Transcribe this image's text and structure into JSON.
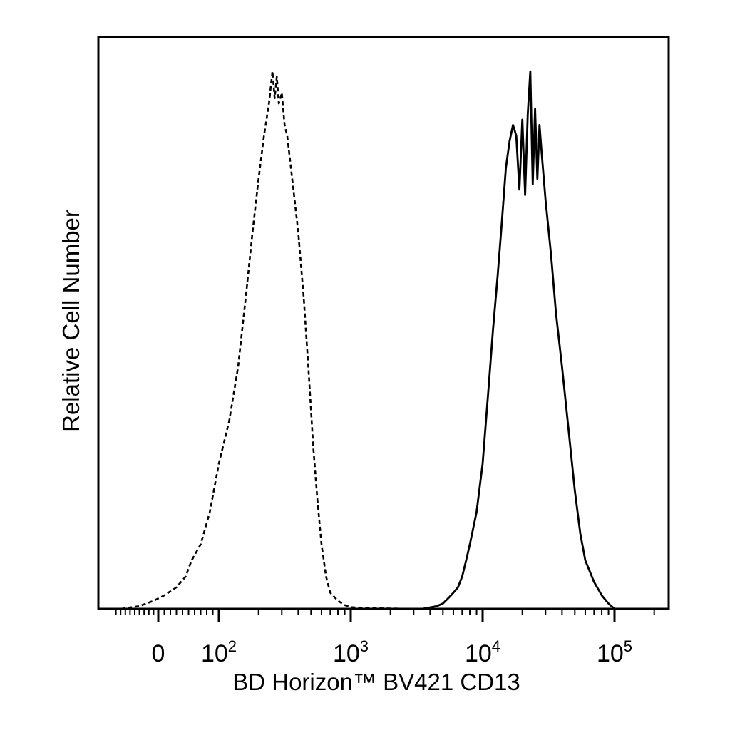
{
  "chart_data": {
    "type": "line",
    "xlabel": "BD Horizon™ BV421 CD13",
    "ylabel": "Relative Cell Number",
    "x_scale": "biexponential",
    "x_range": [
      -100,
      250000
    ],
    "y_range": [
      0,
      100
    ],
    "grid": false,
    "legend": "none",
    "x_ticks": [
      {
        "value": 0,
        "base": "0",
        "exp": ""
      },
      {
        "value": 100,
        "base": "10",
        "exp": "2"
      },
      {
        "value": 1000,
        "base": "10",
        "exp": "3"
      },
      {
        "value": 10000,
        "base": "10",
        "exp": "4"
      },
      {
        "value": 100000,
        "base": "10",
        "exp": "5"
      }
    ],
    "series": [
      {
        "style": "dashed",
        "points": [
          [
            -80,
            0
          ],
          [
            -40,
            0.5
          ],
          [
            -10,
            1.5
          ],
          [
            10,
            2.5
          ],
          [
            30,
            4
          ],
          [
            45,
            6
          ],
          [
            55,
            9
          ],
          [
            70,
            12
          ],
          [
            85,
            18
          ],
          [
            100,
            27
          ],
          [
            120,
            35
          ],
          [
            140,
            45
          ],
          [
            160,
            58
          ],
          [
            180,
            70
          ],
          [
            200,
            80
          ],
          [
            220,
            88
          ],
          [
            240,
            94
          ],
          [
            255,
            100
          ],
          [
            265,
            95
          ],
          [
            275,
            99
          ],
          [
            285,
            94
          ],
          [
            300,
            96
          ],
          [
            315,
            90
          ],
          [
            330,
            88
          ],
          [
            360,
            80
          ],
          [
            400,
            70
          ],
          [
            440,
            58
          ],
          [
            480,
            44
          ],
          [
            520,
            30
          ],
          [
            560,
            20
          ],
          [
            600,
            12
          ],
          [
            650,
            6
          ],
          [
            700,
            3
          ],
          [
            800,
            1.5
          ],
          [
            900,
            0.7
          ],
          [
            1000,
            0.3
          ],
          [
            1500,
            0.1
          ],
          [
            3000,
            0
          ],
          [
            100000,
            0
          ]
        ]
      },
      {
        "style": "solid",
        "points": [
          [
            3500,
            0
          ],
          [
            4500,
            0.5
          ],
          [
            5000,
            1
          ],
          [
            5500,
            2
          ],
          [
            6000,
            3
          ],
          [
            6500,
            4
          ],
          [
            7000,
            6
          ],
          [
            7500,
            9
          ],
          [
            8000,
            12
          ],
          [
            9000,
            18
          ],
          [
            10000,
            27
          ],
          [
            11000,
            40
          ],
          [
            12000,
            52
          ],
          [
            13000,
            62
          ],
          [
            14000,
            72
          ],
          [
            15000,
            82
          ],
          [
            16000,
            87
          ],
          [
            17000,
            90
          ],
          [
            18000,
            88
          ],
          [
            19000,
            78
          ],
          [
            20000,
            91
          ],
          [
            21000,
            77
          ],
          [
            22000,
            92
          ],
          [
            23000,
            100
          ],
          [
            24000,
            79
          ],
          [
            25000,
            93
          ],
          [
            26000,
            80
          ],
          [
            27000,
            90
          ],
          [
            28000,
            85
          ],
          [
            30000,
            76
          ],
          [
            33000,
            66
          ],
          [
            36000,
            55
          ],
          [
            40000,
            45
          ],
          [
            45000,
            33
          ],
          [
            50000,
            22
          ],
          [
            55000,
            14
          ],
          [
            60000,
            9
          ],
          [
            70000,
            5
          ],
          [
            80000,
            2.5
          ],
          [
            90000,
            1
          ],
          [
            100000,
            0
          ]
        ]
      }
    ]
  }
}
